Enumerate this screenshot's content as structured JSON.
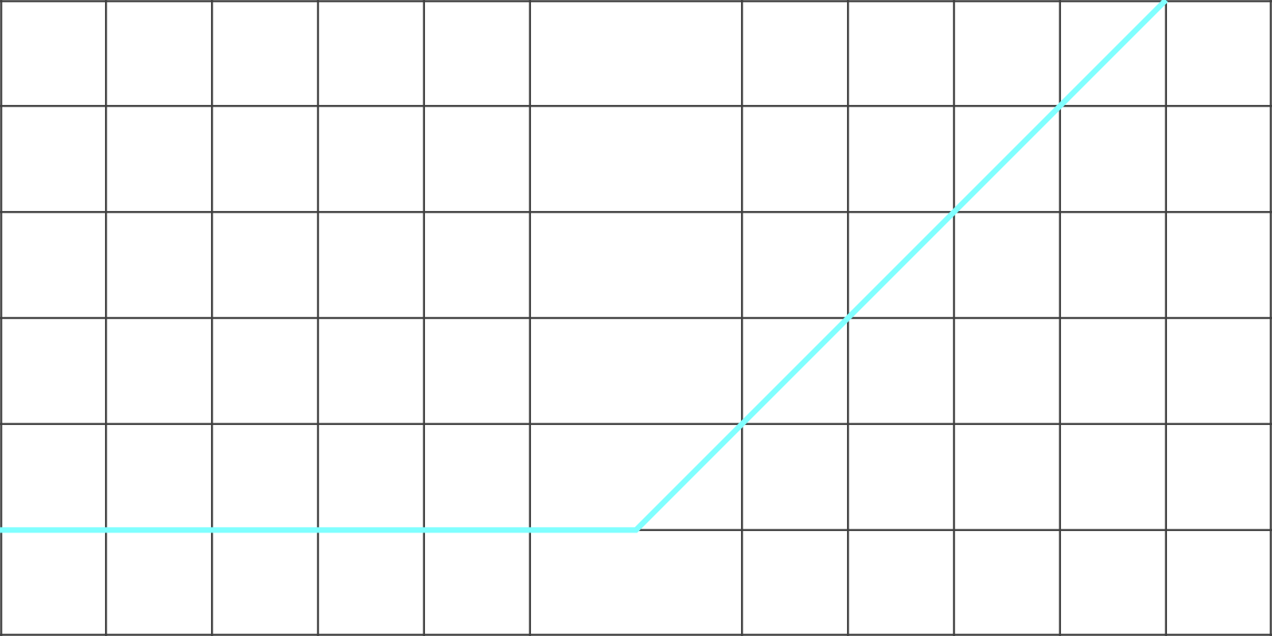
{
  "chart_data": {
    "type": "line",
    "title": "",
    "xlabel": "",
    "ylabel": "",
    "grid": true,
    "xlim": [
      -6,
      6
    ],
    "ylim": [
      -1,
      5
    ],
    "x_gridlines": [
      -6,
      -5,
      -4,
      -3,
      -2,
      -1,
      1,
      2,
      3,
      4,
      5,
      6
    ],
    "y_gridlines": [
      -1,
      0,
      1,
      2,
      3,
      4,
      5
    ],
    "series": [
      {
        "color": "#80FFFF",
        "x": [
          -6,
          0,
          5
        ],
        "y": [
          0,
          0,
          5
        ]
      }
    ]
  },
  "colors": {
    "background": "#FFFFFF",
    "grid": "#404040",
    "series": "#80FFFF"
  }
}
